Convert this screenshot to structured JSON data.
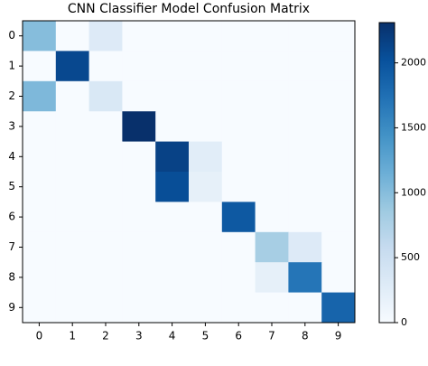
{
  "chart_data": {
    "type": "heatmap",
    "title": "CNN Classifier Model Confusion Matrix",
    "x_categories": [
      "0",
      "1",
      "2",
      "3",
      "4",
      "5",
      "6",
      "7",
      "8",
      "9"
    ],
    "y_categories": [
      "0",
      "1",
      "2",
      "3",
      "4",
      "5",
      "6",
      "7",
      "8",
      "9"
    ],
    "values": [
      [
        1000,
        0,
        300,
        0,
        0,
        0,
        0,
        0,
        0,
        0
      ],
      [
        0,
        2100,
        0,
        0,
        0,
        0,
        0,
        0,
        0,
        0
      ],
      [
        1050,
        0,
        350,
        0,
        0,
        0,
        0,
        0,
        0,
        0
      ],
      [
        0,
        0,
        0,
        2310,
        0,
        0,
        0,
        0,
        0,
        0
      ],
      [
        0,
        0,
        0,
        0,
        2150,
        250,
        0,
        0,
        0,
        0
      ],
      [
        0,
        0,
        0,
        0,
        2050,
        200,
        0,
        0,
        0,
        0
      ],
      [
        0,
        0,
        0,
        0,
        0,
        0,
        1950,
        0,
        0,
        0
      ],
      [
        0,
        0,
        0,
        0,
        0,
        0,
        0,
        800,
        300,
        0
      ],
      [
        0,
        0,
        0,
        0,
        0,
        0,
        0,
        200,
        1700,
        0
      ],
      [
        0,
        0,
        0,
        0,
        0,
        0,
        0,
        0,
        0,
        1850
      ]
    ],
    "colormap": "Blues",
    "clim": [
      0,
      2310
    ],
    "cticks": [
      0,
      500,
      1000,
      1500,
      2000
    ]
  }
}
